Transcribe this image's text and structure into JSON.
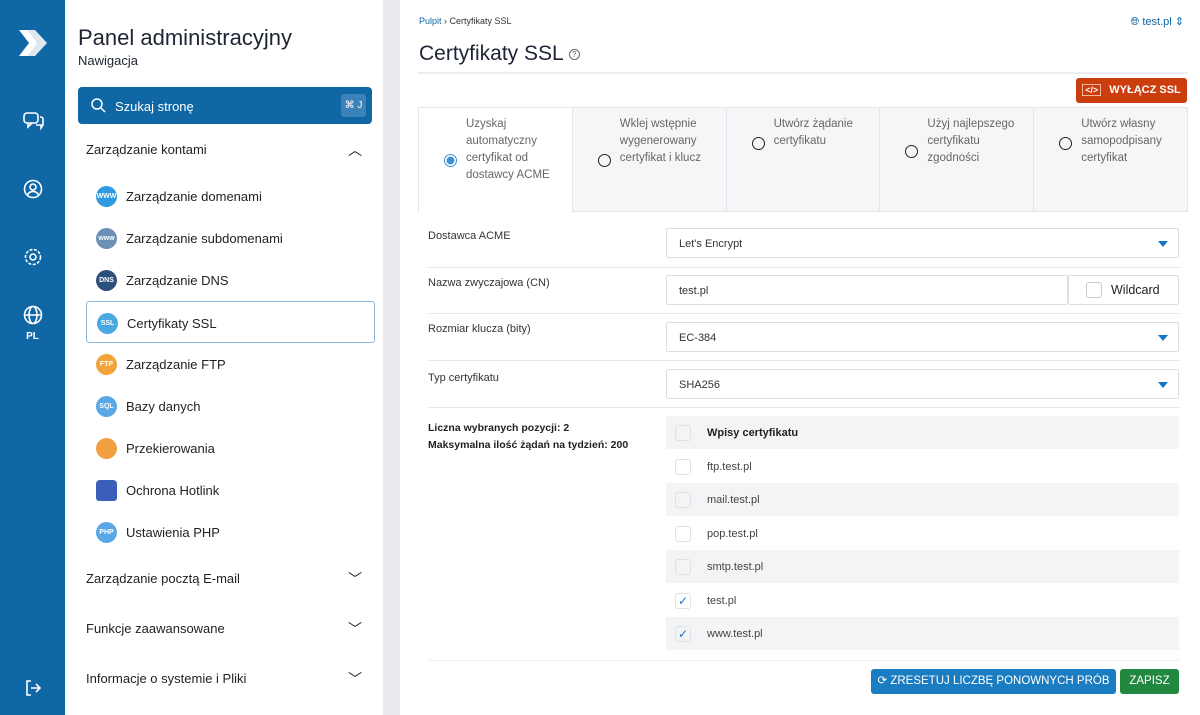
{
  "rail": {
    "lang": "PL"
  },
  "sidebar": {
    "title": "Panel administracyjny",
    "subtitle": "Nawigacja",
    "search_placeholder": "Szukaj stronę",
    "search_shortcut": "⌘ J",
    "group_accounts": "Zarządzanie kontami",
    "items": [
      {
        "label": "Zarządzanie domenami",
        "icon": "www-globe-icon",
        "color": "#2e9be0",
        "tag": "WWW"
      },
      {
        "label": "Zarządzanie subdomenami",
        "icon": "subdomain-icon",
        "color": "#6b8fb5",
        "tag": "www"
      },
      {
        "label": "Zarządzanie DNS",
        "icon": "dns-icon",
        "color": "#2d4f7c",
        "tag": "DNS"
      },
      {
        "label": "Certyfikaty SSL",
        "icon": "ssl-badge-icon",
        "color": "#4aa8e0",
        "tag": "SSL"
      },
      {
        "label": "Zarządzanie FTP",
        "icon": "ftp-icon",
        "color": "#f2a33a",
        "tag": "FTP"
      },
      {
        "label": "Bazy danych",
        "icon": "sql-icon",
        "color": "#5aa7e6",
        "tag": "SQL"
      },
      {
        "label": "Przekierowania",
        "icon": "signpost-icon",
        "color": "#f0a040",
        "tag": ""
      },
      {
        "label": "Ochrona Hotlink",
        "icon": "lock-icon",
        "color": "#3b5fb8",
        "tag": ""
      },
      {
        "label": "Ustawienia PHP",
        "icon": "php-icon",
        "color": "#5aa7e6",
        "tag": "PHP"
      }
    ],
    "groups": [
      "Zarządzanie pocztą E-mail",
      "Funkcje zaawansowane",
      "Informacje o systemie i Pliki"
    ]
  },
  "main": {
    "breadcrumb": [
      "Pulpit",
      "Certyfikaty SSL"
    ],
    "domain": "test.pl",
    "title": "Certyfikaty SSL",
    "disable_ssl": "WYŁĄCZ SSL",
    "tabs": [
      {
        "label": "Uzyskaj automatyczny certyfikat od dostawcy ACME",
        "selected": true
      },
      {
        "label": "Wklej wstępnie wygenerowany certyfikat i klucz",
        "selected": false
      },
      {
        "label": "Utwórz żądanie certyfikatu",
        "selected": false
      },
      {
        "label": "Użyj najlepszego certyfikatu zgodności",
        "selected": false
      },
      {
        "label": "Utwórz własny samopodpisany certyfikat",
        "selected": false
      }
    ],
    "form": {
      "acme_label": "Dostawca ACME",
      "acme_value": "Let's Encrypt",
      "cn_label": "Nazwa zwyczajowa (CN)",
      "cn_value": "test.pl",
      "wildcard": "Wildcard",
      "key_label": "Rozmiar klucza (bity)",
      "key_value": "EC-384",
      "type_label": "Typ certyfikatu",
      "type_value": "SHA256"
    },
    "info": {
      "selected": "Liczna wybranych pozycji: 2",
      "max": "Maksymalna ilość żądań na tydzień: 200"
    },
    "entries_header": "Wpisy certyfikatu",
    "entries": [
      {
        "name": "ftp.test.pl",
        "checked": false
      },
      {
        "name": "mail.test.pl",
        "checked": false
      },
      {
        "name": "pop.test.pl",
        "checked": false
      },
      {
        "name": "smtp.test.pl",
        "checked": false
      },
      {
        "name": "test.pl",
        "checked": true
      },
      {
        "name": "www.test.pl",
        "checked": true
      }
    ],
    "reset_btn": "ZRESETUJ LICZBĘ PONOWNYCH PRÓB",
    "save_btn": "ZAPISZ"
  },
  "colors": {
    "brand": "#0f67a6",
    "danger": "#cc3d0e",
    "success": "#23883f",
    "reset": "#1a7cc1"
  }
}
